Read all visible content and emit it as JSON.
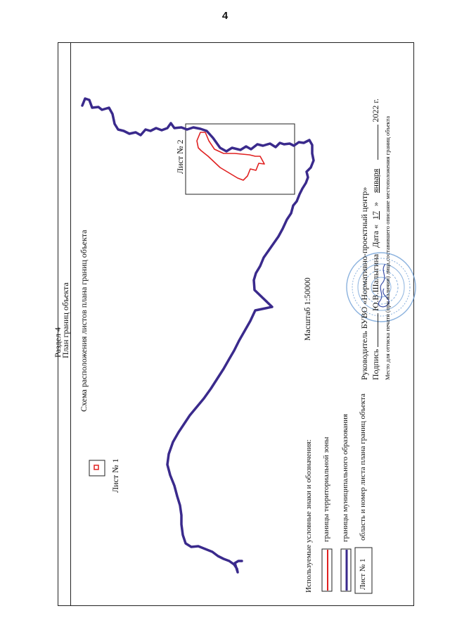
{
  "page_number": "4",
  "section": "Раздел 4",
  "plan_title": "План границ объекта",
  "schema_title": "Схема расположения листов плана границ объекта",
  "sheet1_label": "Лист № 1",
  "sheet2_label": "Лист № 2",
  "scale": "Масштаб 1:50000",
  "legend": {
    "title": "Используемые условные знаки и обозначения:",
    "items": [
      {
        "label": "границы территориальной зоны",
        "color": "#e02020"
      },
      {
        "label": "границы муниципального образования",
        "color": "#3a2a8c"
      },
      {
        "label": "область и номер листа плана границ объекта",
        "sheet": "Лист № 1"
      }
    ]
  },
  "signature": {
    "head": "Руководитель БУВО «Нормативно-проектный центр»",
    "sign_label": "Подпись",
    "name": "Ю.В.Шалыгина",
    "date_label": "Дата «",
    "day": "17",
    "date_mid": "»",
    "month": "января",
    "year": "2022 г.",
    "stamp_note": "Место для оттиска печати (при наличии) лица,составившего описание местоположения границ объекта"
  },
  "colors": {
    "boundary": "#3a2a8c",
    "zone": "#e02020",
    "stamp": "#6f9fd6"
  }
}
